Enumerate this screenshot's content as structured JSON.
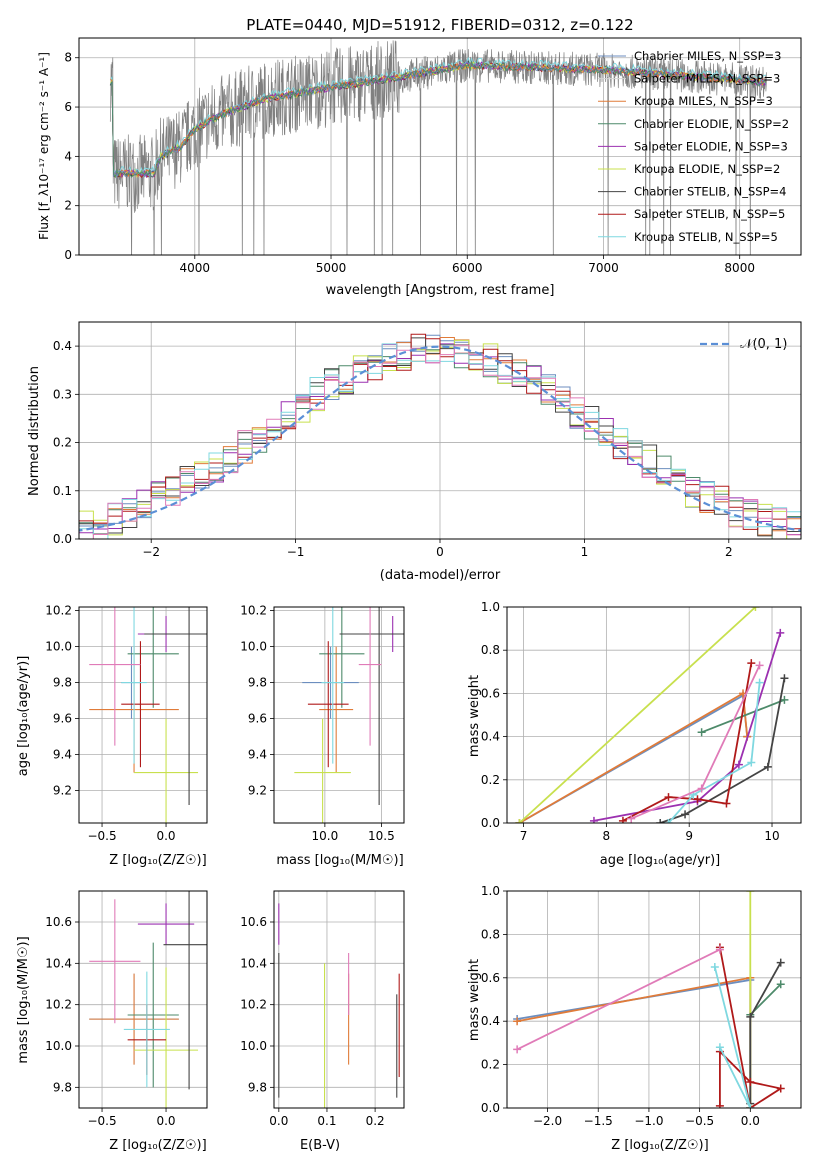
{
  "title": "PLATE=0440, MJD=51912, FIBERID=0312, z=0.122",
  "labels": {
    "p1_xlabel": "wavelength [Angstrom, rest frame]",
    "p1_ylabel": "Flux [f_λ10⁻¹⁷ erg cm⁻² s⁻¹ A⁻¹]",
    "p2_xlabel": "(data-model)/error",
    "p2_ylabel": "Normed distribution",
    "p2_legend": "𝒩(0, 1)",
    "p3_xlabel": "Z [log₁₀(Z/Z☉)]",
    "p3_ylabel": "age  [log₁₀(age/yr)]",
    "p4_xlabel": "mass [log₁₀(M/M☉)]",
    "p5_xlabel": "age  [log₁₀(age/yr)]",
    "p5_ylabel": "mass weight",
    "p6_xlabel": "Z [log₁₀(Z/Z☉)]",
    "p6_ylabel": "mass [log₁₀(M/M☉)]",
    "p7_xlabel": "E(B-V)",
    "p8_xlabel": "Z [log₁₀(Z/Z☉)]",
    "p8_ylabel": "mass weight"
  },
  "colors": [
    "#6c8ebf",
    "#d4d4d4",
    "#e07b39",
    "#4d8a6a",
    "#9b30b0",
    "#c8e04e",
    "#444444",
    "#b01a1a",
    "#7fd8e0",
    "#e07bb8"
  ],
  "legend": [
    {
      "label": "Chabrier MILES, N_SSP=3",
      "color": "#6c8ebf"
    },
    {
      "label": "Salpeter MILES, N_SSP=3",
      "color": "#d4d4d4"
    },
    {
      "label": "Kroupa MILES, N_SSP=3",
      "color": "#e07b39"
    },
    {
      "label": "Chabrier ELODIE, N_SSP=2",
      "color": "#4d8a6a"
    },
    {
      "label": "Salpeter ELODIE, N_SSP=3",
      "color": "#9b30b0"
    },
    {
      "label": "Kroupa ELODIE, N_SSP=2",
      "color": "#c8e04e"
    },
    {
      "label": "Chabrier STELIB, N_SSP=4",
      "color": "#444444"
    },
    {
      "label": "Salpeter STELIB, N_SSP=5",
      "color": "#b01a1a"
    },
    {
      "label": "Kroupa STELIB, N_SSP=5",
      "color": "#7fd8e0"
    }
  ],
  "chart_data": [
    {
      "type": "line",
      "panel": "spectrum",
      "xlim": [
        3150,
        8450
      ],
      "ylim": [
        0,
        8.8
      ],
      "xticks": [
        4000,
        5000,
        6000,
        7000,
        8000
      ],
      "yticks": [
        0,
        2,
        4,
        6,
        8
      ],
      "continuum": {
        "x": [
          3400,
          3500,
          3700,
          3750,
          3900,
          4000,
          4200,
          4500,
          5000,
          5500,
          6000,
          6500,
          7000,
          7500,
          8000,
          8200
        ],
        "y": [
          3.3,
          3.3,
          3.3,
          4.0,
          4.4,
          5.1,
          5.7,
          6.3,
          6.8,
          7.2,
          7.7,
          7.6,
          7.5,
          7.3,
          7.1,
          7.0
        ]
      },
      "data_xrange": [
        3380,
        8200
      ]
    },
    {
      "type": "histogram",
      "panel": "residuals",
      "xlim": [
        -2.5,
        2.5
      ],
      "ylim": [
        0,
        0.45
      ],
      "xticks": [
        -2,
        -1,
        0,
        1,
        2
      ],
      "yticks": [
        0.0,
        0.1,
        0.2,
        0.3,
        0.4
      ],
      "bin_centers": [
        -2.45,
        -2.35,
        -2.25,
        -2.15,
        -2.05,
        -1.95,
        -1.85,
        -1.75,
        -1.65,
        -1.55,
        -1.45,
        -1.35,
        -1.25,
        -1.15,
        -1.05,
        -0.95,
        -0.85,
        -0.75,
        -0.65,
        -0.55,
        -0.45,
        -0.35,
        -0.25,
        -0.15,
        -0.05,
        0.05,
        0.15,
        0.25,
        0.35,
        0.45,
        0.55,
        0.65,
        0.75,
        0.85,
        0.95,
        1.05,
        1.15,
        1.25,
        1.35,
        1.45,
        1.55,
        1.65,
        1.75,
        1.85,
        1.95,
        2.05,
        2.15,
        2.25,
        2.35,
        2.45
      ],
      "base": [
        0.025,
        0.03,
        0.04,
        0.05,
        0.07,
        0.09,
        0.1,
        0.12,
        0.14,
        0.15,
        0.17,
        0.19,
        0.2,
        0.22,
        0.25,
        0.27,
        0.3,
        0.32,
        0.33,
        0.35,
        0.36,
        0.37,
        0.38,
        0.39,
        0.39,
        0.4,
        0.39,
        0.38,
        0.37,
        0.35,
        0.34,
        0.33,
        0.31,
        0.29,
        0.26,
        0.24,
        0.22,
        0.2,
        0.18,
        0.16,
        0.14,
        0.12,
        0.1,
        0.09,
        0.08,
        0.06,
        0.05,
        0.04,
        0.03,
        0.025
      ],
      "normal_series": "𝒩(0, 1)"
    },
    {
      "type": "scatter",
      "panel": "age-vs-Z",
      "xlim": [
        -0.68,
        0.32
      ],
      "ylim": [
        9.02,
        10.22
      ],
      "xticks": [
        -0.5,
        0.0
      ],
      "yticks": [
        9.2,
        9.4,
        9.6,
        9.8,
        10.0,
        10.2
      ],
      "points": [
        {
          "x": -0.27,
          "y": 9.8,
          "xe": 0.08,
          "ye": 0.2,
          "c": 0
        },
        {
          "x": -0.25,
          "y": 9.65,
          "xe": 0.35,
          "ye": 0.35,
          "c": 2
        },
        {
          "x": -0.1,
          "y": 9.96,
          "xe": 0.2,
          "ye": 0.3,
          "c": 3
        },
        {
          "x": 0.0,
          "y": 10.07,
          "xe": 0.22,
          "ye": 0.1,
          "c": 4
        },
        {
          "x": 0.0,
          "y": 9.3,
          "xe": 0.25,
          "ye": 0.3,
          "c": 5
        },
        {
          "x": 0.18,
          "y": 10.07,
          "xe": 0.35,
          "ye": 0.95,
          "c": 6
        },
        {
          "x": -0.2,
          "y": 9.68,
          "xe": 0.15,
          "ye": 0.35,
          "c": 7
        },
        {
          "x": -0.25,
          "y": 9.8,
          "xe": 0.1,
          "ye": 0.45,
          "c": 8
        },
        {
          "x": -0.4,
          "y": 9.9,
          "xe": 0.2,
          "ye": 0.45,
          "c": 9
        }
      ]
    },
    {
      "type": "scatter",
      "panel": "age-vs-mass",
      "xlim": [
        9.55,
        10.7
      ],
      "ylim": [
        9.02,
        10.22
      ],
      "xticks": [
        10.0,
        10.5
      ],
      "yticks": [
        9.2,
        9.4,
        9.6,
        9.8,
        10.0,
        10.2
      ],
      "points": [
        {
          "x": 10.05,
          "y": 9.8,
          "xe": 0.25,
          "ye": 0.2,
          "c": 0
        },
        {
          "x": 10.1,
          "y": 9.65,
          "xe": 0.15,
          "ye": 0.35,
          "c": 2
        },
        {
          "x": 10.15,
          "y": 9.96,
          "xe": 0.2,
          "ye": 0.3,
          "c": 3
        },
        {
          "x": 10.6,
          "y": 10.07,
          "xe": 0.08,
          "ye": 0.1,
          "c": 4
        },
        {
          "x": 9.98,
          "y": 9.3,
          "xe": 0.25,
          "ye": 0.3,
          "c": 5
        },
        {
          "x": 10.48,
          "y": 10.07,
          "xe": 0.35,
          "ye": 0.95,
          "c": 6
        },
        {
          "x": 10.03,
          "y": 9.68,
          "xe": 0.18,
          "ye": 0.35,
          "c": 7
        },
        {
          "x": 10.07,
          "y": 9.8,
          "xe": 0.1,
          "ye": 0.45,
          "c": 8
        },
        {
          "x": 10.4,
          "y": 9.9,
          "xe": 0.1,
          "ye": 0.45,
          "c": 9
        }
      ]
    },
    {
      "type": "line",
      "panel": "massweight-vs-age",
      "xlim": [
        6.8,
        10.35
      ],
      "ylim": [
        0,
        1
      ],
      "xticks": [
        7,
        8,
        9,
        10
      ],
      "yticks": [
        0.0,
        0.2,
        0.4,
        0.6,
        0.8,
        1.0
      ],
      "series": [
        {
          "c": 0,
          "x": [
            6.95,
            9.65,
            9.7
          ],
          "y": [
            0.0,
            0.59,
            0.4
          ]
        },
        {
          "c": 2,
          "x": [
            6.95,
            9.65,
            9.7
          ],
          "y": [
            0.0,
            0.6,
            0.4
          ]
        },
        {
          "c": 3,
          "x": [
            9.15,
            10.15
          ],
          "y": [
            0.42,
            0.57
          ]
        },
        {
          "c": 4,
          "x": [
            7.85,
            9.1,
            9.6,
            10.1
          ],
          "y": [
            0.01,
            0.1,
            0.27,
            0.88
          ]
        },
        {
          "c": 5,
          "x": [
            6.95,
            9.8
          ],
          "y": [
            0.0,
            1.0
          ]
        },
        {
          "c": 6,
          "x": [
            8.65,
            8.95,
            9.95,
            10.15
          ],
          "y": [
            0.0,
            0.04,
            0.26,
            0.67
          ]
        },
        {
          "c": 7,
          "x": [
            8.2,
            8.75,
            9.1,
            9.45,
            9.75
          ],
          "y": [
            0.01,
            0.12,
            0.11,
            0.09,
            0.74
          ]
        },
        {
          "c": 8,
          "x": [
            8.75,
            9.05,
            9.75,
            9.85
          ],
          "y": [
            0.0,
            0.13,
            0.28,
            0.65
          ]
        },
        {
          "c": 9,
          "x": [
            8.3,
            9.15,
            9.85
          ],
          "y": [
            0.02,
            0.16,
            0.73
          ]
        }
      ]
    },
    {
      "type": "scatter",
      "panel": "mass-vs-Z",
      "xlim": [
        -0.68,
        0.32
      ],
      "ylim": [
        9.7,
        10.75
      ],
      "xticks": [
        -0.5,
        0.0
      ],
      "yticks": [
        9.8,
        10.0,
        10.2,
        10.4,
        10.6
      ],
      "points": [
        {
          "x": -0.25,
          "y": 10.13,
          "xe": 0.35,
          "ye": 0.22,
          "c": 0
        },
        {
          "x": -0.25,
          "y": 10.13,
          "xe": 0.35,
          "ye": 0.22,
          "c": 2
        },
        {
          "x": -0.1,
          "y": 10.15,
          "xe": 0.2,
          "ye": 0.35,
          "c": 3
        },
        {
          "x": 0.0,
          "y": 10.59,
          "xe": 0.22,
          "ye": 0.1,
          "c": 4
        },
        {
          "x": 0.0,
          "y": 9.98,
          "xe": 0.25,
          "ye": 0.4,
          "c": 5
        },
        {
          "x": 0.18,
          "y": 10.49,
          "xe": 0.2,
          "ye": 0.7,
          "c": 6
        },
        {
          "x": -0.15,
          "y": 10.03,
          "xe": 0.15,
          "ye": 0.17,
          "c": 7
        },
        {
          "x": -0.15,
          "y": 10.08,
          "xe": 0.18,
          "ye": 0.28,
          "c": 8
        },
        {
          "x": -0.4,
          "y": 10.41,
          "xe": 0.2,
          "ye": 0.3,
          "c": 9
        }
      ]
    },
    {
      "type": "scatter",
      "panel": "mass-vs-EBV",
      "xlim": [
        -0.01,
        0.26
      ],
      "ylim": [
        9.7,
        10.75
      ],
      "xticks": [
        0.0,
        0.1,
        0.2
      ],
      "yticks": [
        9.8,
        10.0,
        10.2,
        10.4,
        10.6
      ],
      "points": [
        {
          "x": 0.0,
          "y": 10.59,
          "xe": 0.0,
          "ye": 0.1,
          "c": 4
        },
        {
          "x": 0.0,
          "y": 10.1,
          "xe": 0.0,
          "ye": 0.35,
          "c": 6
        },
        {
          "x": 0.095,
          "y": 10.0,
          "xe": 0.0,
          "ye": 0.4,
          "c": 5
        },
        {
          "x": 0.145,
          "y": 10.13,
          "xe": 0.0,
          "ye": 0.22,
          "c": 2
        },
        {
          "x": 0.145,
          "y": 10.3,
          "xe": 0.0,
          "ye": 0.15,
          "c": 9
        },
        {
          "x": 0.245,
          "y": 10.0,
          "xe": 0.0,
          "ye": 0.25,
          "c": 6
        },
        {
          "x": 0.25,
          "y": 10.1,
          "xe": 0.0,
          "ye": 0.25,
          "c": 7
        }
      ]
    },
    {
      "type": "line",
      "panel": "massweight-vs-Z",
      "xlim": [
        -2.4,
        0.5
      ],
      "ylim": [
        0,
        1
      ],
      "xticks": [
        -2.0,
        -1.5,
        -1.0,
        -0.5,
        0.0
      ],
      "yticks": [
        0.0,
        0.2,
        0.4,
        0.6,
        0.8,
        1.0
      ],
      "series": [
        {
          "c": 0,
          "x": [
            -2.3,
            0.0,
            0.0
          ],
          "y": [
            0.41,
            0.59,
            0.0
          ]
        },
        {
          "c": 2,
          "x": [
            -2.3,
            0.0,
            0.0
          ],
          "y": [
            0.4,
            0.6,
            0.0
          ]
        },
        {
          "c": 3,
          "x": [
            0.0,
            0.3
          ],
          "y": [
            0.43,
            0.57
          ]
        },
        {
          "c": 5,
          "x": [
            0.0,
            0.0
          ],
          "y": [
            0.0,
            1.0
          ]
        },
        {
          "c": 6,
          "x": [
            0.0,
            0.0,
            0.3
          ],
          "y": [
            0.02,
            0.42,
            0.67
          ]
        },
        {
          "c": 7,
          "x": [
            -0.3,
            -0.3,
            0.0,
            0.3,
            0.0,
            -0.3
          ],
          "y": [
            0.01,
            0.26,
            0.12,
            0.09,
            0.0,
            0.74
          ]
        },
        {
          "c": 8,
          "x": [
            -0.3,
            0.0,
            -0.35
          ],
          "y": [
            0.28,
            0.0,
            0.65
          ]
        },
        {
          "c": 9,
          "x": [
            -2.3,
            -0.3
          ],
          "y": [
            0.27,
            0.73
          ]
        }
      ]
    }
  ]
}
